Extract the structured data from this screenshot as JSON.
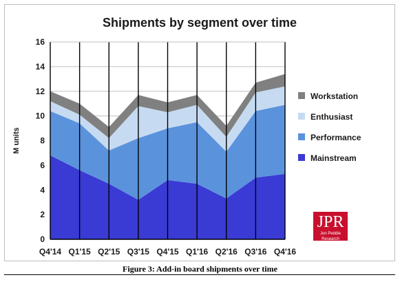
{
  "chart_data": {
    "type": "area",
    "stacked": true,
    "title": "Shipments by segment over time",
    "ylabel": "M units",
    "xlabel": "",
    "ylim": [
      0,
      16
    ],
    "yticks": [
      "0",
      "2",
      "4",
      "6",
      "8",
      "10",
      "12",
      "14",
      "16"
    ],
    "categories": [
      "Q4'14",
      "Q1'15",
      "Q2'15",
      "Q3'15",
      "Q4'15",
      "Q1'16",
      "Q2'16",
      "Q3'16",
      "Q4'16"
    ],
    "grid": true,
    "legend_position": "right",
    "series": [
      {
        "name": "Mainstream",
        "color": "#3a3ad4",
        "values": [
          6.8,
          5.6,
          4.5,
          3.2,
          4.8,
          4.5,
          3.3,
          5.0,
          5.3
        ]
      },
      {
        "name": "Performance",
        "color": "#5b92dc",
        "values": [
          3.6,
          3.8,
          2.7,
          5.0,
          4.2,
          5.0,
          3.8,
          5.4,
          5.6
        ]
      },
      {
        "name": "Enthusiast",
        "color": "#c6dbf2",
        "values": [
          0.8,
          0.7,
          1.0,
          2.6,
          1.3,
          1.4,
          1.2,
          1.5,
          1.5
        ]
      },
      {
        "name": "Workstation",
        "color": "#808080",
        "values": [
          0.8,
          0.9,
          0.9,
          0.9,
          0.8,
          0.8,
          0.9,
          0.8,
          1.0
        ]
      }
    ],
    "legend_order": [
      "Workstation",
      "Enthusiast",
      "Performance",
      "Mainstream"
    ]
  },
  "logo": {
    "mark": "JPR",
    "sub": "Jon Peddie Research"
  },
  "caption": "Figure 3: Add-in board shipments over time"
}
